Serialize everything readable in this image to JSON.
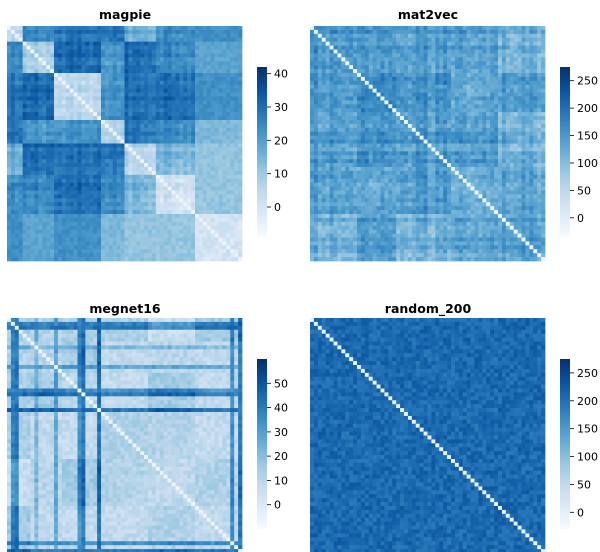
{
  "chart_data": [
    {
      "type": "heatmap",
      "title": "magpie",
      "colormap": "Blues",
      "vmin": -9,
      "vmax": 42,
      "colorbar_ticks": [
        0,
        10,
        20,
        30,
        40
      ],
      "n": 60,
      "block_sizes": [
        4,
        8,
        12,
        6,
        8,
        10,
        12
      ],
      "pattern": "block-structured; low distances on diagonal; large light block in lower-right",
      "x_tick_labels": [],
      "y_tick_labels": []
    },
    {
      "type": "heatmap",
      "title": "mat2vec",
      "colormap": "Blues",
      "vmin": -35,
      "vmax": 275,
      "colorbar_ticks": [
        0,
        50,
        100,
        150,
        200,
        250
      ],
      "n": 60,
      "block_sizes": [
        12,
        10,
        14,
        12,
        12
      ],
      "pattern": "uniformly medium-dark with faint block texture; white diagonal",
      "x_tick_labels": [],
      "y_tick_labels": []
    },
    {
      "type": "heatmap",
      "title": "megnet16",
      "colormap": "Blues",
      "vmin": -10,
      "vmax": 60,
      "colorbar_ticks": [
        0,
        10,
        20,
        30,
        40,
        50
      ],
      "n": 60,
      "block_sizes": [
        6,
        8,
        10,
        12,
        12,
        12
      ],
      "pattern": "mostly light with darker stripes; white diagonal",
      "x_tick_labels": [],
      "y_tick_labels": []
    },
    {
      "type": "heatmap",
      "title": "random_200",
      "colormap": "Blues",
      "vmin": -30,
      "vmax": 275,
      "colorbar_ticks": [
        0,
        50,
        100,
        150,
        200,
        250
      ],
      "n": 60,
      "block_sizes": [
        60
      ],
      "pattern": "uniform dark blue noise; white diagonal",
      "x_tick_labels": [],
      "y_tick_labels": []
    }
  ]
}
